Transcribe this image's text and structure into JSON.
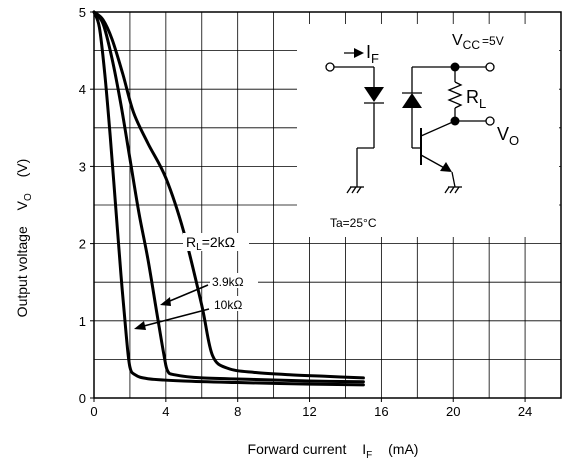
{
  "chart_data": {
    "type": "line",
    "xlabel": "Forward current",
    "xlabel_symbol": "I",
    "xlabel_sub": "F",
    "xlabel_unit": "(mA)",
    "ylabel": "Output voltage",
    "ylabel_symbol": "V",
    "ylabel_sub": "O",
    "ylabel_unit": "(V)",
    "xlim": [
      0,
      26
    ],
    "ylim": [
      0,
      5
    ],
    "x_ticks": [
      "0",
      "4",
      "8",
      "12",
      "16",
      "20",
      "24"
    ],
    "y_ticks": [
      "0",
      "1",
      "2",
      "3",
      "4",
      "5"
    ],
    "grid": true,
    "series": [
      {
        "name": "RL=2kΩ",
        "x": [
          0,
          0.5,
          1,
          1.6,
          2.2,
          3,
          4,
          5,
          6,
          6.6,
          7.5,
          9,
          11,
          13,
          15
        ],
        "y": [
          5,
          4.9,
          4.65,
          4.2,
          3.7,
          3.3,
          2.85,
          2.15,
          1.2,
          0.55,
          0.38,
          0.33,
          0.3,
          0.28,
          0.26
        ]
      },
      {
        "name": "3.9kΩ",
        "x": [
          0,
          0.5,
          1,
          1.5,
          2,
          2.5,
          3,
          3.5,
          3.9,
          4.1,
          4.5,
          6,
          9,
          12,
          15
        ],
        "y": [
          5,
          4.85,
          4.4,
          3.8,
          3.1,
          2.4,
          1.8,
          1.1,
          0.55,
          0.35,
          0.3,
          0.26,
          0.24,
          0.22,
          0.21
        ]
      },
      {
        "name": "10kΩ",
        "x": [
          0,
          0.3,
          0.6,
          0.9,
          1.2,
          1.5,
          1.8,
          2.0,
          2.3,
          3,
          5,
          8,
          12,
          15
        ],
        "y": [
          5,
          4.8,
          4.2,
          3.4,
          2.5,
          1.6,
          0.8,
          0.4,
          0.3,
          0.25,
          0.22,
          0.2,
          0.18,
          0.17
        ]
      }
    ],
    "annotations": {
      "rl_prefix": "R",
      "rl_sub": "L",
      "rl_value": "=2kΩ",
      "label_39k": "3.9kΩ",
      "label_10k": "10kΩ",
      "ta": "Ta=25°C"
    }
  },
  "circuit": {
    "if_symbol": "I",
    "if_sub": "F",
    "vcc_symbol": "V",
    "vcc_sub": "CC",
    "vcc_value": "=5V",
    "rl_symbol": "R",
    "rl_sub": "L",
    "vo_symbol": "V",
    "vo_sub": "O"
  }
}
